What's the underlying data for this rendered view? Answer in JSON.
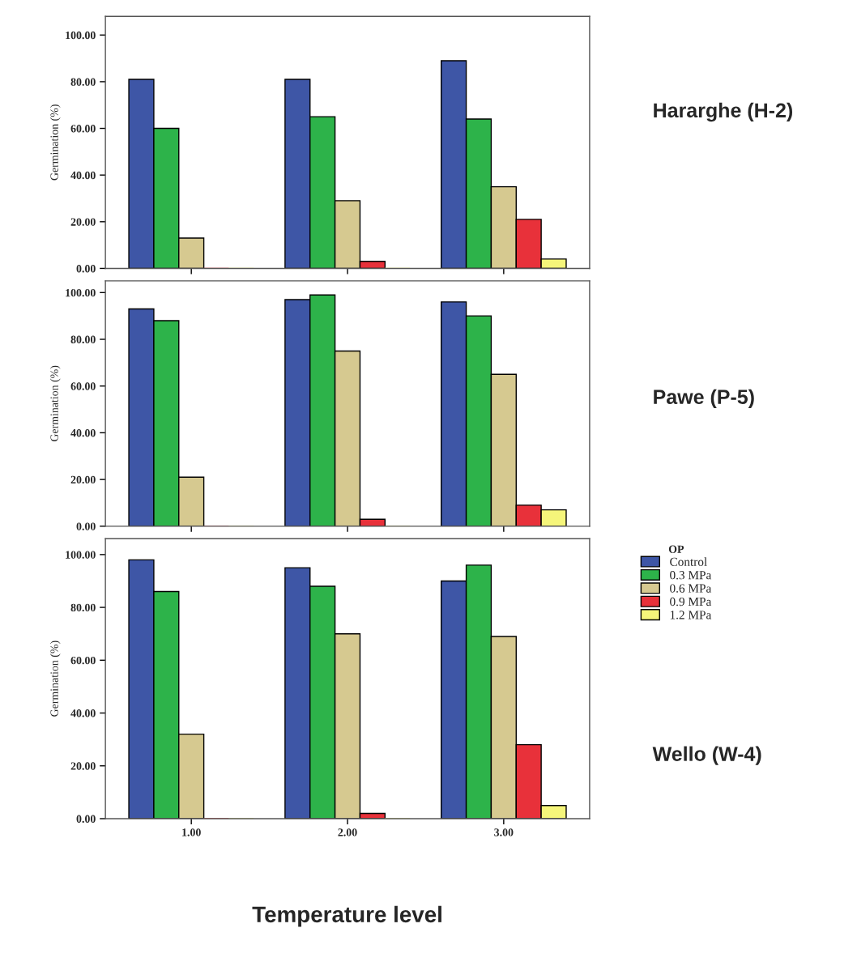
{
  "chart_data": [
    {
      "type": "bar",
      "annotations": [
        "Hararghe (H-2)"
      ],
      "ylabel": "Germination (%)",
      "legend_title": "OP",
      "categories": [
        "1.00",
        "2.00",
        "3.00"
      ],
      "tick_labels": "y",
      "ylim": [
        0,
        108
      ],
      "yticks": [
        {
          "value": 0,
          "label": "0.00"
        },
        {
          "value": 20,
          "label": "20.00"
        },
        {
          "value": 40,
          "label": "40.00"
        },
        {
          "value": 60,
          "label": "60.00"
        },
        {
          "value": 80,
          "label": "80.00"
        },
        {
          "value": 100,
          "label": "100.00"
        }
      ],
      "grid": false,
      "legend": "right",
      "series": [
        {
          "name": "Control",
          "color": "#3e56a6",
          "values": [
            81,
            81,
            89
          ]
        },
        {
          "name": "0.3 MPa",
          "color": "#2db34a",
          "values": [
            60,
            65,
            64
          ]
        },
        {
          "name": "0.6 MPa",
          "color": "#d6c990",
          "values": [
            13,
            29,
            35
          ]
        },
        {
          "name": "0.9 MPa",
          "color": "#e8313a",
          "values": [
            0,
            3,
            21
          ]
        },
        {
          "name": "1.2 MPa",
          "color": "#f5f57a",
          "values": [
            0,
            0,
            4
          ]
        }
      ]
    },
    {
      "type": "bar",
      "annotations": [
        "Pawe (P-5)"
      ],
      "ylabel": "Germination (%)",
      "categories": [
        "1.00",
        "2.00",
        "3.00"
      ],
      "tick_labels": "y",
      "ylim": [
        0,
        105
      ],
      "yticks": [
        {
          "value": 0,
          "label": "0.00"
        },
        {
          "value": 20,
          "label": "20.00"
        },
        {
          "value": 40,
          "label": "40.00"
        },
        {
          "value": 60,
          "label": "60.00"
        },
        {
          "value": 80,
          "label": "80.00"
        },
        {
          "value": 100,
          "label": "100.00"
        }
      ],
      "grid": false,
      "series": [
        {
          "color": "#3e56a6",
          "values": [
            93,
            97,
            96
          ]
        },
        {
          "color": "#2db34a",
          "values": [
            88,
            99,
            90
          ]
        },
        {
          "color": "#d6c990",
          "values": [
            21,
            75,
            65
          ]
        },
        {
          "color": "#e8313a",
          "values": [
            0,
            3,
            9
          ]
        },
        {
          "color": "#f5f57a",
          "values": [
            0,
            0,
            7
          ]
        }
      ]
    },
    {
      "type": "bar",
      "annotations": [
        "Wello (W-4)"
      ],
      "ylabel": "Germination (%)",
      "xlabel": "Temperature level",
      "categories": [
        "1.00",
        "2.00",
        "3.00"
      ],
      "ylim": [
        0,
        106
      ],
      "yticks": [
        {
          "value": 0,
          "label": "0.00"
        },
        {
          "value": 20,
          "label": "20.00"
        },
        {
          "value": 40,
          "label": "40.00"
        },
        {
          "value": 60,
          "label": "60.00"
        },
        {
          "value": 80,
          "label": "80.00"
        },
        {
          "value": 100,
          "label": "100.00"
        }
      ],
      "grid": false,
      "series": [
        {
          "color": "#3e56a6",
          "values": [
            98,
            95,
            90
          ]
        },
        {
          "color": "#2db34a",
          "values": [
            86,
            88,
            96
          ]
        },
        {
          "color": "#d6c990",
          "values": [
            32,
            70,
            69
          ]
        },
        {
          "color": "#e8313a",
          "values": [
            0,
            2,
            28
          ]
        },
        {
          "color": "#f5f57a",
          "values": [
            0,
            0,
            5
          ]
        }
      ]
    }
  ]
}
